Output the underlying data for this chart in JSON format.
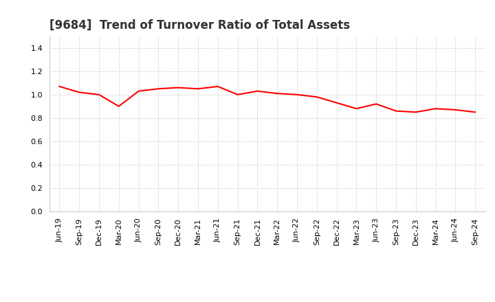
{
  "title": "[9684]  Trend of Turnover Ratio of Total Assets",
  "x_labels": [
    "Jun-19",
    "Sep-19",
    "Dec-19",
    "Mar-20",
    "Jun-20",
    "Sep-20",
    "Dec-20",
    "Mar-21",
    "Jun-21",
    "Sep-21",
    "Dec-21",
    "Mar-22",
    "Jun-22",
    "Sep-22",
    "Dec-22",
    "Mar-23",
    "Jun-23",
    "Sep-23",
    "Dec-23",
    "Mar-24",
    "Jun-24",
    "Sep-24"
  ],
  "values": [
    1.07,
    1.02,
    1.0,
    0.9,
    1.03,
    1.05,
    1.06,
    1.05,
    1.07,
    1.0,
    1.03,
    1.01,
    1.0,
    0.98,
    0.93,
    0.88,
    0.92,
    0.86,
    0.85,
    0.88,
    0.87,
    0.85
  ],
  "line_color": "#FF0000",
  "background_color": "#FFFFFF",
  "plot_bg_color": "#FFFFFF",
  "grid_color": "#BBBBBB",
  "ylim": [
    0.0,
    1.5
  ],
  "yticks": [
    0.0,
    0.2,
    0.4,
    0.6,
    0.8,
    1.0,
    1.2,
    1.4
  ],
  "title_fontsize": 12,
  "tick_fontsize": 8,
  "title_color": "#333333"
}
